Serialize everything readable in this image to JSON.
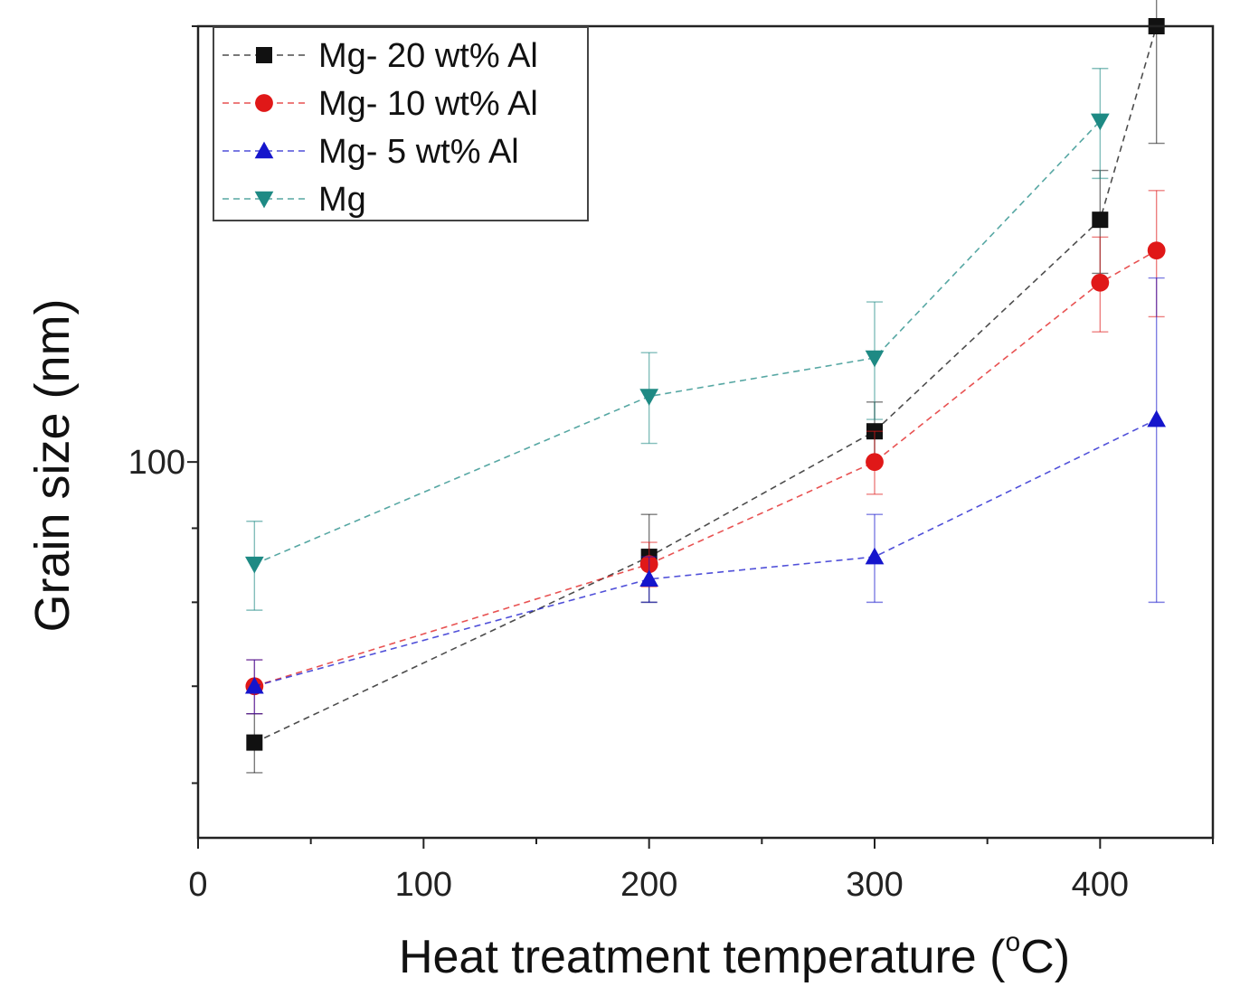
{
  "chart_data": {
    "type": "scatter",
    "title": "",
    "xlabel": "Heat treatment temperature (°C)",
    "xlabel_parts": {
      "main": "Heat treatment temperature (",
      "sup": "o",
      "unit": "C)"
    },
    "ylabel": "Grain size (nm)",
    "yscale": "log",
    "xlim": [
      0,
      450
    ],
    "ylim": [
      55,
      200
    ],
    "x_ticks": [
      0,
      100,
      200,
      300,
      400
    ],
    "x_tick_labels": [
      "0",
      "100",
      "200",
      "300",
      "400"
    ],
    "y_ticks": [
      100
    ],
    "y_tick_labels": [
      "100"
    ],
    "legend_position": "top-left",
    "series": [
      {
        "name": "Mg- 20 wt% Al",
        "marker": "square",
        "color": "#111111",
        "x": [
          25,
          200,
          300,
          400,
          425
        ],
        "y": [
          64,
          86,
          105,
          147,
          200
        ],
        "err": [
          3,
          6,
          5,
          12,
          34
        ]
      },
      {
        "name": "Mg- 10 wt% Al",
        "marker": "circle",
        "color": "#e01818",
        "x": [
          25,
          200,
          300,
          400,
          425
        ],
        "y": [
          70,
          85,
          100,
          133,
          140
        ],
        "err": [
          3,
          3,
          5,
          10,
          14
        ]
      },
      {
        "name": "Mg- 5 wt% Al",
        "marker": "triangle-up",
        "color": "#1515cc",
        "x": [
          25,
          200,
          300,
          425
        ],
        "y": [
          70,
          83,
          86,
          107
        ],
        "err": [
          3,
          3,
          6,
          27
        ]
      },
      {
        "name": "Mg",
        "marker": "triangle-down",
        "color": "#1e8a84",
        "x": [
          25,
          200,
          300,
          400
        ],
        "y": [
          85,
          111,
          118,
          172
        ],
        "err": [
          6,
          8,
          11,
          15
        ]
      }
    ]
  }
}
